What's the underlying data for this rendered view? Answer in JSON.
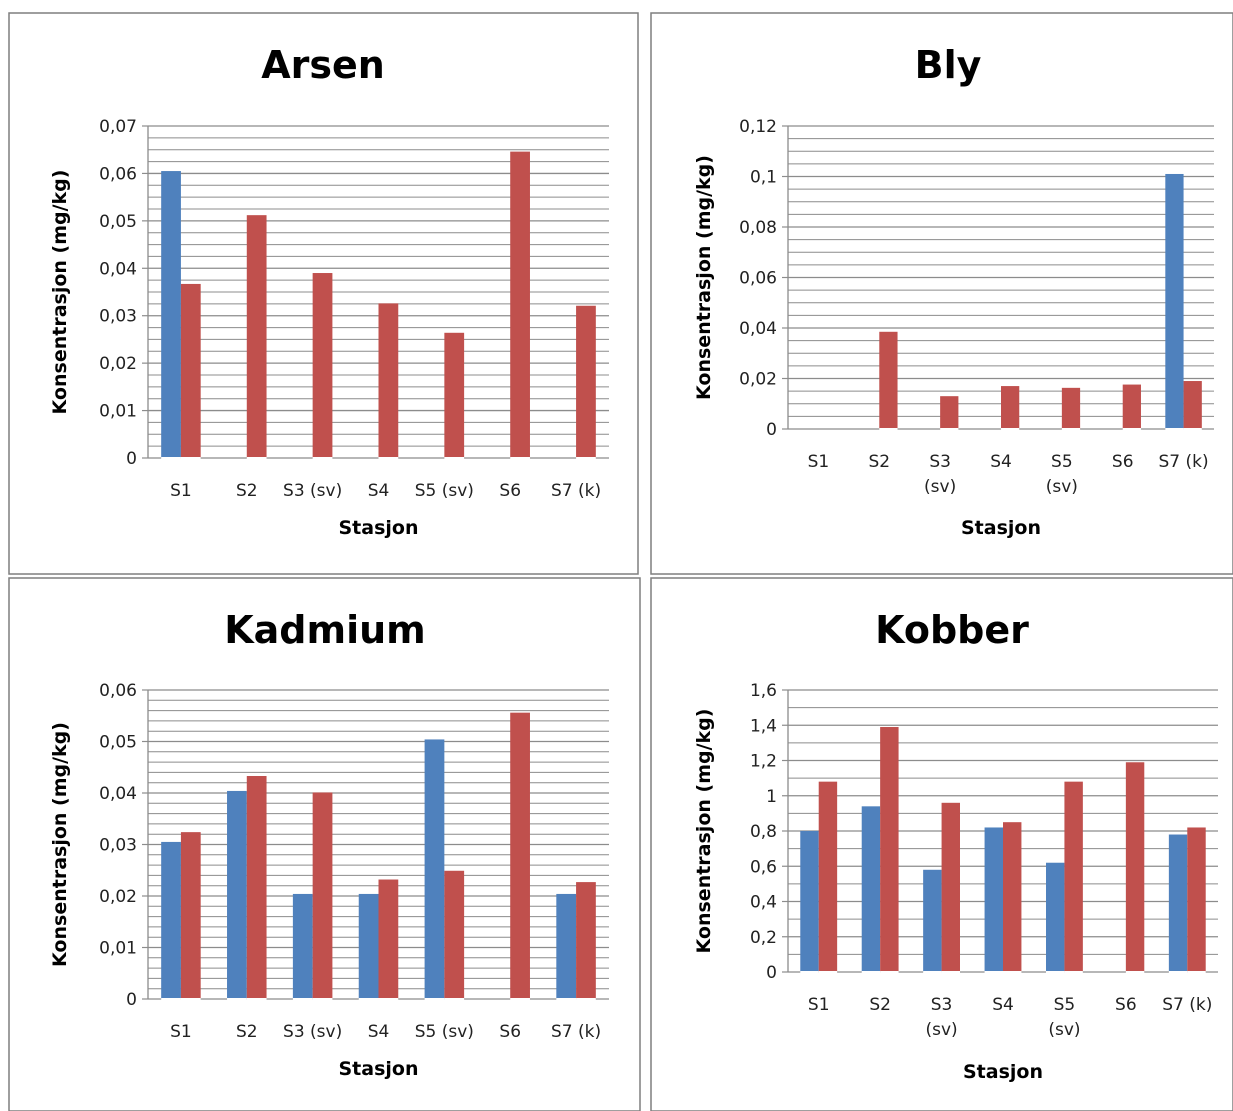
{
  "colors": {
    "series1": "#4f81bd",
    "series2": "#c0504d",
    "grid": "#8c8c8c",
    "frame": "#7f7f7f"
  },
  "chart_data": [
    {
      "type": "bar",
      "title": "Arsen",
      "xlabel": "Stasjon",
      "ylabel": "Konsentrasjon (mg/kg)",
      "ylim": [
        0,
        0.07
      ],
      "yticks": [
        "0",
        "0,01",
        "0,02",
        "0,03",
        "0,04",
        "0,05",
        "0,06",
        "0,07"
      ],
      "categories": [
        [
          "S1"
        ],
        [
          "S2"
        ],
        [
          "S3 (sv)"
        ],
        [
          "S4"
        ],
        [
          "S5 (sv)"
        ],
        [
          "S6"
        ],
        [
          "S7 (k)"
        ]
      ],
      "series": [
        {
          "values": [
            0.0605,
            0,
            0,
            0,
            0,
            0,
            0
          ]
        },
        {
          "values": [
            0.0367,
            0.0512,
            0.039,
            0.0326,
            0.0264,
            0.0646,
            0.0321
          ]
        }
      ]
    },
    {
      "type": "bar",
      "title": "Bly",
      "xlabel": "Stasjon",
      "ylabel": "Konsentrasjon (mg/kg)",
      "ylim": [
        0,
        0.12
      ],
      "yticks": [
        "0",
        "0,02",
        "0,04",
        "0,06",
        "0,08",
        "0,1",
        "0,12"
      ],
      "categories": [
        [
          "S1"
        ],
        [
          "S2"
        ],
        [
          "S3",
          "(sv)"
        ],
        [
          "S4"
        ],
        [
          "S5",
          "(sv)"
        ],
        [
          "S6"
        ],
        [
          "S7 (k)"
        ]
      ],
      "series": [
        {
          "values": [
            0,
            0,
            0,
            0,
            0,
            0,
            0.101
          ]
        },
        {
          "values": [
            0,
            0.0385,
            0.013,
            0.017,
            0.0163,
            0.0176,
            0.019
          ]
        }
      ]
    },
    {
      "type": "bar",
      "title": "Kadmium",
      "xlabel": "Stasjon",
      "ylabel": "Konsentrasjon (mg/kg)",
      "ylim": [
        0,
        0.06
      ],
      "yticks": [
        "0",
        "0,01",
        "0,02",
        "0,03",
        "0,04",
        "0,05",
        "0,06"
      ],
      "categories": [
        [
          "S1"
        ],
        [
          "S2"
        ],
        [
          "S3 (sv)"
        ],
        [
          "S4"
        ],
        [
          "S5 (sv)"
        ],
        [
          "S6"
        ],
        [
          "S7 (k)"
        ]
      ],
      "series": [
        {
          "values": [
            0.0305,
            0.0404,
            0.0204,
            0.0204,
            0.0504,
            0,
            0.0204
          ]
        },
        {
          "values": [
            0.0324,
            0.0433,
            0.0401,
            0.0232,
            0.0249,
            0.0556,
            0.0227
          ]
        }
      ]
    },
    {
      "type": "bar",
      "title": "Kobber",
      "xlabel": "Stasjon",
      "ylabel": "Konsentrasjon (mg/kg)",
      "ylim": [
        0,
        1.6
      ],
      "yticks": [
        "0",
        "0,2",
        "0,4",
        "0,6",
        "0,8",
        "1",
        "1,2",
        "1,4",
        "1,6"
      ],
      "categories": [
        [
          "S1"
        ],
        [
          "S2"
        ],
        [
          "S3",
          "(sv)"
        ],
        [
          "S4"
        ],
        [
          "S5",
          "(sv)"
        ],
        [
          "S6"
        ],
        [
          "S7 (k)"
        ]
      ],
      "series": [
        {
          "values": [
            0.8,
            0.94,
            0.58,
            0.82,
            0.62,
            0,
            0.78
          ]
        },
        {
          "values": [
            1.08,
            1.39,
            0.96,
            0.85,
            1.08,
            1.19,
            0.82
          ]
        }
      ]
    }
  ]
}
